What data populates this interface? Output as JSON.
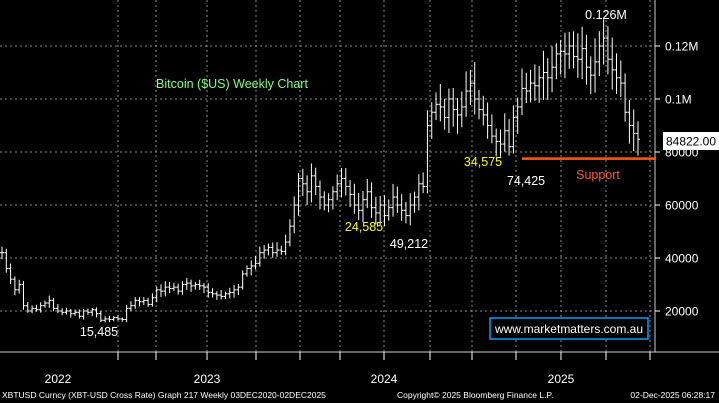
{
  "chart_data": {
    "type": "line",
    "title": "Bitcoin ($US) Weekly Chart",
    "y_ticks": [
      {
        "value": 20000,
        "label": "20000"
      },
      {
        "value": 40000,
        "label": "40000"
      },
      {
        "value": 60000,
        "label": "60000"
      },
      {
        "value": 80000,
        "label": "80000"
      },
      {
        "value": 100000,
        "label": "0.1M"
      },
      {
        "value": 120000,
        "label": "0.12M"
      }
    ],
    "x_ticks": [
      "2022",
      "2023",
      "2024",
      "2025"
    ],
    "ylim": [
      0,
      135000
    ],
    "grid": true,
    "last_price_label": "84822.00",
    "last_price": 84822,
    "support": {
      "label": "Support",
      "value": 77500,
      "color": "#ff5a1e"
    },
    "annotations": [
      {
        "text": "15,485",
        "value": 15485,
        "color": "#ffffff"
      },
      {
        "text": "24,585",
        "value": 24585,
        "color": "#ffff00"
      },
      {
        "text": "49,212",
        "value": 49212,
        "color": "#ffffff"
      },
      {
        "text": "34,575",
        "value": 34575,
        "color": "#ffff00"
      },
      {
        "text": "74,425",
        "value": 74425,
        "color": "#ffffff"
      },
      {
        "text": "0.126M",
        "value": 126000,
        "color": "#ffffff"
      }
    ],
    "watermark": "www.marketmatters.com.au",
    "series": [
      {
        "closes": [
          42000,
          36000,
          32000,
          28000,
          30000,
          22000,
          20000,
          21000,
          20500,
          22000,
          23000,
          24000,
          21000,
          20000,
          19500,
          20000,
          19000,
          19500,
          18000,
          20000,
          19500,
          20500,
          19000,
          16500,
          17000,
          16800,
          17500,
          17000,
          16800,
          21000,
          22000,
          24000,
          23500,
          24000,
          22500,
          25000,
          28000,
          27500,
          29000,
          28500,
          29000,
          27500,
          30000,
          30500,
          29500,
          30000,
          29500,
          29000,
          27000,
          26500,
          26000,
          25500,
          26500,
          27000,
          28000,
          29000,
          34000,
          36000,
          37000,
          38000,
          42000,
          43000,
          44000,
          42000,
          43000,
          42500,
          46000,
          52000,
          60000,
          70000,
          68000,
          65000,
          71000,
          67000,
          63000,
          60000,
          62000,
          65000,
          68000,
          70000,
          67000,
          64000,
          60000,
          58000,
          62000,
          65000,
          59000,
          57000,
          60000,
          56000,
          59000,
          63000,
          60000,
          58000,
          56000,
          60000,
          63000,
          68000,
          67000,
          90000,
          95000,
          98000,
          97000,
          93000,
          100000,
          96000,
          94000,
          97000,
          103000,
          106000,
          100000,
          96000,
          94000,
          90000,
          86000,
          84000,
          83000,
          88000,
          82000,
          93000,
          97000,
          104000,
          103000,
          106000,
          105000,
          108000,
          110000,
          108000,
          112000,
          117000,
          118000,
          117000,
          120000,
          116000,
          115000,
          119000,
          112000,
          109000,
          114000,
          120000,
          123000,
          115000,
          111000,
          108000,
          106000,
          95000,
          90000,
          87000,
          84822
        ]
      }
    ]
  },
  "footer": {
    "left": "XBTUSD Curncy (XBT-USD Cross Rate) Graph 217 Weekly 03DEC2020-02DEC2025",
    "center": "Copyright© 2025 Bloomberg Finance L.P.",
    "right": "02-Dec-2025 06:28:17"
  },
  "colors": {
    "background": "#000000",
    "grid": "#8c8c8c",
    "price": "#ffffff",
    "title": "#7fff7f",
    "axis_text": "#ffffff",
    "watermark_border": "#00a0ff"
  }
}
